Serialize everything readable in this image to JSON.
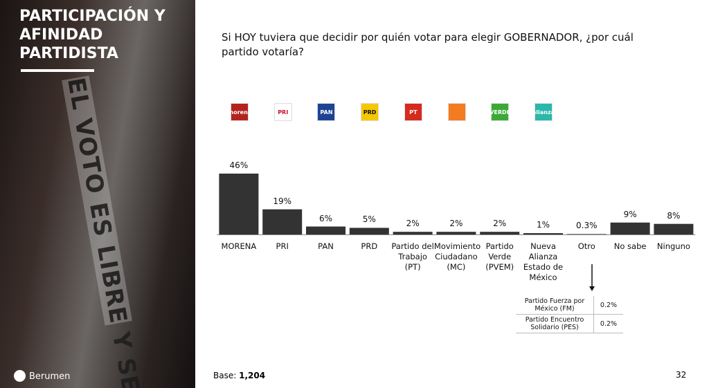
{
  "header": {
    "title": "PARTICIPACIÓN Y AFINIDAD PARTIDISTA",
    "photo_text": "EL VOTO ES LIBRE Y SECRETO",
    "brand": "Berumen"
  },
  "question": "Si HOY tuviera que decidir por quién votar para elegir GOBERNADOR, ¿por cuál partido votaría?",
  "logos": {
    "labels": [
      "morena",
      "PRI",
      "PAN",
      "PRD",
      "PT",
      null,
      "VERDE",
      "alianza"
    ],
    "colors": [
      "#b3231d",
      "#ffffff",
      "#1d4493",
      "#f6c700",
      "#d52b1e",
      "#f47b20",
      "#3aa935",
      "#2bb7a9"
    ]
  },
  "chart_data": {
    "type": "bar",
    "color": "#333333",
    "categories": [
      "MORENA",
      "PRI",
      "PAN",
      "PRD",
      "Partido del Trabajo (PT)",
      "Movimiento Ciudadano (MC)",
      "Partido Verde (PVEM)",
      "Nueva Alianza Estado de México",
      "Otro",
      "No sabe",
      "Ninguno"
    ],
    "values": [
      46,
      19,
      6,
      5,
      2,
      2,
      2,
      1,
      0.3,
      9,
      8
    ],
    "value_labels": [
      "46%",
      "19%",
      "6%",
      "5%",
      "2%",
      "2%",
      "2%",
      "1%",
      "0.3%",
      "9%",
      "8%"
    ]
  },
  "other_table": {
    "rows": [
      [
        "Partido Fuerza por México (FM)",
        "0.2%"
      ],
      [
        "Partido Encuentro Solidario (PES)",
        "0.2%"
      ]
    ]
  },
  "footer": {
    "base_label": "Base:",
    "base_value": "1,204",
    "page": "32"
  }
}
